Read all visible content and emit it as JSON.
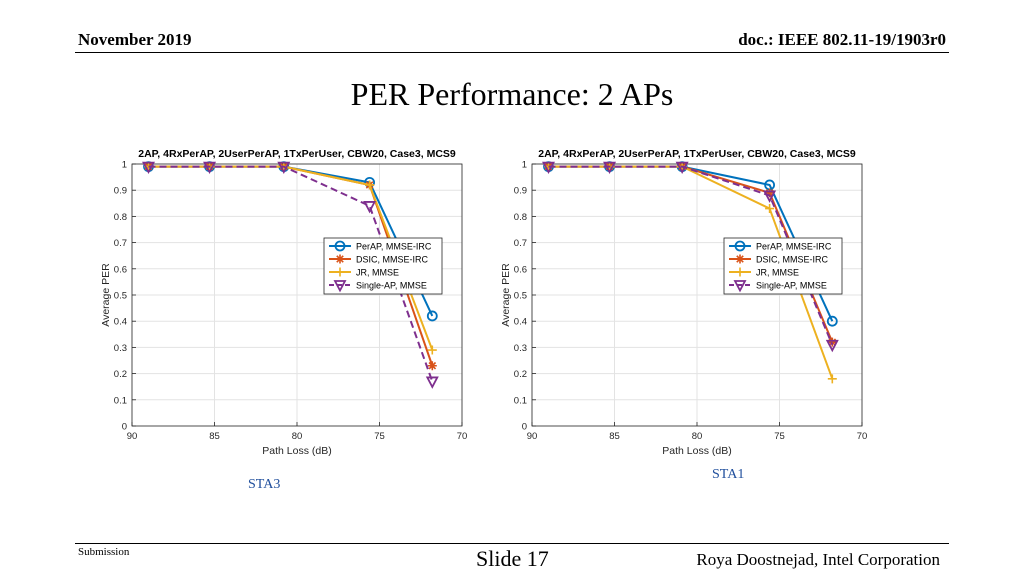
{
  "header": {
    "date": "November 2019",
    "doc": "doc.: IEEE 802.11-19/1903r0"
  },
  "title": "PER Performance: 2 APs",
  "footer": {
    "submission": "Submission",
    "slide": "Slide 17",
    "author": "Roya Doostnejad, Intel Corporation"
  },
  "colors": {
    "perap": "#0072BD",
    "dsic": "#D95319",
    "jr": "#EDB120",
    "single": "#7E2F8E"
  },
  "chart_data": [
    {
      "type": "line",
      "label": "STA3",
      "title": "2AP, 4RxPerAP, 2UserPerAP, 1TxPerUser, CBW20, Case3, MCS9",
      "xlabel": "Path Loss (dB)",
      "ylabel": "Average PER",
      "xlim": [
        90,
        70
      ],
      "ylim": [
        0,
        1
      ],
      "xticks": [
        90,
        85,
        80,
        75,
        70
      ],
      "yticks": [
        0,
        0.1,
        0.2,
        0.3,
        0.4,
        0.5,
        0.6,
        0.7,
        0.8,
        0.9,
        1
      ],
      "grid": true,
      "legend_position": "right",
      "x": [
        89,
        85.3,
        80.8,
        75.6,
        71.8
      ],
      "series": [
        {
          "name": "PerAP, MMSE-IRC",
          "values": [
            0.99,
            0.99,
            0.99,
            0.93,
            0.42
          ],
          "color": "#0072BD",
          "marker": "circle",
          "dash": "solid"
        },
        {
          "name": "DSIC, MMSE-IRC",
          "values": [
            0.99,
            0.99,
            0.99,
            0.92,
            0.23
          ],
          "color": "#D95319",
          "marker": "asterisk",
          "dash": "solid"
        },
        {
          "name": "JR, MMSE",
          "values": [
            0.99,
            0.99,
            0.99,
            0.92,
            0.29
          ],
          "color": "#EDB120",
          "marker": "plus",
          "dash": "solid"
        },
        {
          "name": "Single-AP, MMSE",
          "values": [
            0.99,
            0.99,
            0.99,
            0.84,
            0.17
          ],
          "color": "#7E2F8E",
          "marker": "triangle-down",
          "dash": "dashed"
        }
      ]
    },
    {
      "type": "line",
      "label": "STA1",
      "title": "2AP, 4RxPerAP, 2UserPerAP, 1TxPerUser, CBW20, Case3, MCS9",
      "xlabel": "Path Loss (dB)",
      "ylabel": "Average PER",
      "xlim": [
        90,
        70
      ],
      "ylim": [
        0,
        1
      ],
      "xticks": [
        90,
        85,
        80,
        75,
        70
      ],
      "yticks": [
        0,
        0.1,
        0.2,
        0.3,
        0.4,
        0.5,
        0.6,
        0.7,
        0.8,
        0.9,
        1
      ],
      "grid": true,
      "legend_position": "right",
      "x": [
        89,
        85.3,
        80.9,
        75.6,
        71.8
      ],
      "series": [
        {
          "name": "PerAP, MMSE-IRC",
          "values": [
            0.99,
            0.99,
            0.99,
            0.92,
            0.4
          ],
          "color": "#0072BD",
          "marker": "circle",
          "dash": "solid"
        },
        {
          "name": "DSIC, MMSE-IRC",
          "values": [
            0.99,
            0.99,
            0.99,
            0.89,
            0.32
          ],
          "color": "#D95319",
          "marker": "asterisk",
          "dash": "solid"
        },
        {
          "name": "JR, MMSE",
          "values": [
            0.99,
            0.99,
            0.99,
            0.83,
            0.18
          ],
          "color": "#EDB120",
          "marker": "plus",
          "dash": "solid"
        },
        {
          "name": "Single-AP, MMSE",
          "values": [
            0.99,
            0.99,
            0.99,
            0.88,
            0.31
          ],
          "color": "#7E2F8E",
          "marker": "triangle-down",
          "dash": "dashed"
        }
      ]
    }
  ]
}
